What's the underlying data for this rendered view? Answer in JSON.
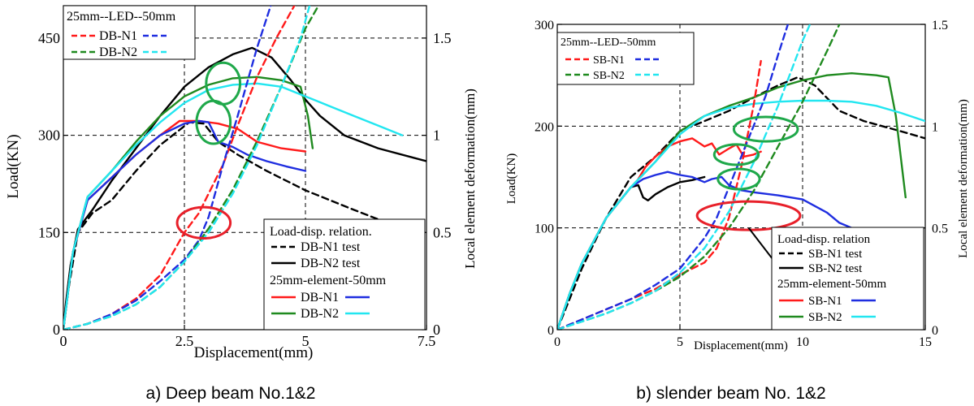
{
  "figure": {
    "panel_a_caption": "a) Deep beam No.1&2",
    "panel_b_caption": "b) slender beam No. 1&2"
  },
  "colors": {
    "red": "#ff1a1a",
    "blue": "#1f2ee0",
    "green": "#1f8a1f",
    "cyan": "#22e6f0",
    "black": "#000000",
    "circle_green": "#1fa84a",
    "circle_red": "#e8202a"
  },
  "chart_data": [
    {
      "type": "line",
      "panel": "a",
      "xlabel": "Displacement(mm)",
      "ylabel": "Load(KN)",
      "y2label": "Local element deformation(mm)",
      "xlim": [
        0,
        7.5
      ],
      "ylim": [
        0,
        500
      ],
      "y2lim": [
        0,
        1.6667
      ],
      "x_ticks": [
        "0",
        "2.5",
        "5",
        "7.5"
      ],
      "y_ticks": [
        "0",
        "150",
        "300",
        "450"
      ],
      "y2_ticks": [
        "0",
        "0.5",
        "1",
        "1.5"
      ],
      "grid": "dashed at x=2.5, x=5 and y=150, 300, 450",
      "legend_top": {
        "title": "25mm--LED--50mm",
        "entries": [
          "DB-N1",
          "DB-N2"
        ]
      },
      "legend_bottom": {
        "title1": "Load-disp. relation.",
        "test_entries": [
          "DB-N1 test",
          "DB-N2 test"
        ],
        "title2": "25mm-element-50mm",
        "fe_entries": [
          "DB-N1",
          "DB-N2"
        ]
      },
      "series": [
        {
          "name": "DB-N1 test",
          "axis": "left",
          "color": "black",
          "dash": true,
          "x": [
            0,
            0.1,
            0.3,
            0.6,
            1.0,
            1.5,
            2.0,
            2.6,
            2.9,
            3.2,
            3.6,
            4.2,
            5.0,
            6.0,
            7.2
          ],
          "y": [
            0,
            60,
            150,
            180,
            200,
            245,
            285,
            320,
            318,
            290,
            270,
            245,
            215,
            185,
            150
          ]
        },
        {
          "name": "DB-N2 test",
          "axis": "left",
          "color": "black",
          "dash": false,
          "x": [
            0,
            0.05,
            0.15,
            0.3,
            0.6,
            1.0,
            1.5,
            2.0,
            2.5,
            3.0,
            3.5,
            3.9,
            4.3,
            4.7,
            5.0,
            5.3,
            5.8,
            6.5,
            7.5
          ],
          "y": [
            0,
            40,
            100,
            155,
            185,
            230,
            280,
            330,
            375,
            405,
            425,
            435,
            420,
            385,
            355,
            330,
            300,
            280,
            260
          ]
        },
        {
          "name": "DB-N1",
          "axis": "left",
          "color": "red",
          "dash": false,
          "x": [
            0,
            0.2,
            0.5,
            1.0,
            1.5,
            2.0,
            2.4,
            2.8,
            3.2,
            3.6,
            4.0,
            4.5,
            5.0
          ],
          "y": [
            0,
            120,
            200,
            235,
            270,
            300,
            322,
            322,
            318,
            310,
            290,
            280,
            275
          ]
        },
        {
          "name": "DB-N1",
          "axis": "left",
          "color": "blue",
          "dash": false,
          "x": [
            0,
            0.2,
            0.5,
            1.0,
            1.5,
            2.0,
            2.5,
            2.8,
            3.0,
            3.2,
            3.5,
            3.8,
            4.2,
            4.6,
            5.0
          ],
          "y": [
            0,
            120,
            200,
            235,
            270,
            300,
            318,
            322,
            320,
            290,
            282,
            270,
            260,
            252,
            245
          ]
        },
        {
          "name": "DB-N2",
          "axis": "left",
          "color": "green",
          "dash": false,
          "x": [
            0,
            0.2,
            0.5,
            1.0,
            1.5,
            2.0,
            2.5,
            3.0,
            3.5,
            4.0,
            4.5,
            4.9,
            5.05,
            5.15
          ],
          "y": [
            0,
            120,
            205,
            245,
            290,
            330,
            360,
            378,
            388,
            390,
            385,
            375,
            330,
            280
          ]
        },
        {
          "name": "DB-N2",
          "axis": "left",
          "color": "cyan",
          "dash": false,
          "x": [
            0,
            0.2,
            0.5,
            1.0,
            1.5,
            2.0,
            2.5,
            3.0,
            3.5,
            4.0,
            4.5,
            5.0,
            5.5,
            6.0,
            6.5,
            7.0
          ],
          "y": [
            0,
            120,
            205,
            245,
            285,
            320,
            350,
            370,
            378,
            380,
            375,
            360,
            345,
            330,
            315,
            300
          ]
        },
        {
          "name": "DB-N1",
          "axis": "right",
          "color": "red",
          "dash": true,
          "x": [
            0,
            0.5,
            1.0,
            1.5,
            2.0,
            2.5,
            2.8,
            3.0,
            3.3,
            3.6,
            4.0,
            4.4,
            4.8
          ],
          "y": [
            0,
            0.03,
            0.08,
            0.16,
            0.28,
            0.5,
            0.6,
            0.7,
            0.85,
            1.05,
            1.3,
            1.5,
            1.68
          ]
        },
        {
          "name": "DB-N1",
          "axis": "right",
          "color": "blue",
          "dash": true,
          "x": [
            0,
            0.5,
            1.0,
            1.5,
            2.0,
            2.5,
            2.8,
            3.0,
            3.3,
            3.6,
            4.0,
            4.3
          ],
          "y": [
            0,
            0.03,
            0.08,
            0.15,
            0.25,
            0.36,
            0.46,
            0.58,
            0.85,
            1.1,
            1.45,
            1.68
          ]
        },
        {
          "name": "DB-N2",
          "axis": "right",
          "color": "green",
          "dash": true,
          "x": [
            0,
            0.5,
            1.0,
            1.5,
            2.0,
            2.5,
            3.0,
            3.5,
            4.0,
            4.5,
            5.0,
            5.3
          ],
          "y": [
            0,
            0.03,
            0.07,
            0.13,
            0.22,
            0.35,
            0.52,
            0.72,
            0.97,
            1.25,
            1.55,
            1.68
          ]
        },
        {
          "name": "DB-N2",
          "axis": "right",
          "color": "cyan",
          "dash": true,
          "x": [
            0,
            0.5,
            1.0,
            1.5,
            2.0,
            2.5,
            3.0,
            3.5,
            4.0,
            4.5,
            4.9,
            5.1
          ],
          "y": [
            0,
            0.03,
            0.07,
            0.13,
            0.22,
            0.35,
            0.5,
            0.7,
            0.95,
            1.25,
            1.5,
            1.68
          ]
        }
      ],
      "annotations": [
        {
          "shape": "ellipse",
          "color": "circle_green",
          "x": 3.3,
          "y": 380,
          "rx": 0.35,
          "ry": 32
        },
        {
          "shape": "ellipse",
          "color": "circle_green",
          "x": 3.1,
          "y": 320,
          "rx": 0.35,
          "ry": 33
        },
        {
          "shape": "ellipse",
          "color": "circle_red",
          "x": 2.9,
          "y": 165,
          "rx": 0.55,
          "ry": 24
        }
      ]
    },
    {
      "type": "line",
      "panel": "b",
      "xlabel": "Displacement(mm)",
      "ylabel": "Load(KN)",
      "y2label": "Local element deformation(mm)",
      "xlim": [
        0,
        15
      ],
      "ylim": [
        0,
        300
      ],
      "y2lim": [
        0,
        1.5
      ],
      "x_ticks": [
        "0",
        "5",
        "10",
        "15"
      ],
      "y_ticks": [
        "0",
        "100",
        "200",
        "300"
      ],
      "y2_ticks": [
        "0",
        "0.5",
        "1",
        "1.5"
      ],
      "grid": "dashed at x=5, x=10 and y=100, 200",
      "legend_top": {
        "title": "25mm--LED--50mm",
        "entries": [
          "SB-N1",
          "SB-N2"
        ]
      },
      "legend_bottom": {
        "title1": "Load-disp. relation",
        "test_entries": [
          "SB-N1 test",
          "SB-N2 test"
        ],
        "title2": "25mm-element-50mm",
        "fe_entries": [
          "SB-N1",
          "SB-N2"
        ]
      },
      "series": [
        {
          "name": "SB-N1 test",
          "axis": "left",
          "color": "black",
          "dash": true,
          "x": [
            0,
            0.5,
            1.0,
            2.0,
            3.0,
            4.0,
            5.0,
            6.0,
            7.0,
            8.0,
            9.0,
            9.8,
            10.5,
            11.5,
            12.5,
            14.0,
            15.0
          ],
          "y": [
            0,
            30,
            60,
            110,
            150,
            170,
            195,
            205,
            215,
            228,
            240,
            248,
            240,
            215,
            205,
            195,
            188
          ]
        },
        {
          "name": "SB-N2 test",
          "axis": "left",
          "color": "black",
          "dash": false,
          "x": [
            0,
            0.5,
            1.0,
            2.0,
            3.0,
            3.3,
            3.5,
            3.7,
            4.0,
            4.5,
            5.0,
            5.5,
            6.0
          ],
          "y": [
            0,
            35,
            65,
            110,
            140,
            142,
            130,
            127,
            133,
            140,
            145,
            147,
            150
          ]
        },
        {
          "name": "SB-N1",
          "axis": "left",
          "color": "red",
          "dash": false,
          "x": [
            3.3,
            3.6,
            4.0,
            4.5,
            5.0,
            5.5,
            6.0,
            6.3,
            6.6,
            7.0,
            7.3,
            7.6,
            8.0,
            8.3
          ],
          "y": [
            148,
            160,
            170,
            180,
            185,
            188,
            180,
            183,
            172,
            178,
            182,
            170,
            172,
            175
          ]
        },
        {
          "name": "SB-N1",
          "axis": "left",
          "color": "blue",
          "dash": false,
          "x": [
            0,
            0.5,
            1.0,
            2.0,
            3.0,
            3.5,
            4.0,
            4.5,
            5.0,
            5.5,
            6.0,
            6.3,
            6.7,
            7.0,
            7.5,
            8.0,
            9.0,
            10.0,
            11.0,
            11.5,
            12.0
          ],
          "y": [
            0,
            35,
            65,
            110,
            140,
            148,
            152,
            155,
            152,
            150,
            145,
            148,
            150,
            142,
            137,
            135,
            132,
            128,
            115,
            105,
            100
          ]
        },
        {
          "name": "SB-N2",
          "axis": "left",
          "color": "green",
          "dash": false,
          "x": [
            0,
            0.5,
            1.0,
            2.0,
            3.0,
            4.0,
            5.0,
            6.0,
            7.0,
            8.0,
            9.0,
            10.0,
            11.0,
            12.0,
            13.0,
            13.5,
            13.8,
            14.0,
            14.2
          ],
          "y": [
            0,
            35,
            65,
            110,
            140,
            165,
            195,
            210,
            220,
            228,
            238,
            245,
            250,
            252,
            250,
            248,
            210,
            170,
            130
          ]
        },
        {
          "name": "SB-N2",
          "axis": "left",
          "color": "cyan",
          "dash": false,
          "x": [
            0,
            0.5,
            1.0,
            2.0,
            3.0,
            4.0,
            5.0,
            6.0,
            7.0,
            8.0,
            9.0,
            10.0,
            11.0,
            12.0,
            13.0,
            14.0,
            15.0
          ],
          "y": [
            0,
            35,
            65,
            110,
            140,
            165,
            192,
            210,
            218,
            222,
            224,
            225,
            225,
            224,
            220,
            213,
            205
          ]
        },
        {
          "name": "SB-N1",
          "axis": "right",
          "color": "red",
          "dash": true,
          "x": [
            0,
            1.0,
            2.0,
            3.0,
            4.0,
            5.0,
            5.5,
            6.0,
            6.5,
            7.0,
            7.5,
            8.0,
            8.3
          ],
          "y": [
            0,
            0.05,
            0.1,
            0.15,
            0.2,
            0.27,
            0.3,
            0.33,
            0.4,
            0.55,
            0.8,
            1.1,
            1.32
          ]
        },
        {
          "name": "SB-N1",
          "axis": "right",
          "color": "blue",
          "dash": true,
          "x": [
            0,
            1.0,
            2.0,
            3.0,
            4.0,
            5.0,
            6.0,
            6.5,
            7.0,
            7.5,
            8.0,
            8.5,
            9.0,
            9.4
          ],
          "y": [
            0,
            0.05,
            0.1,
            0.15,
            0.22,
            0.3,
            0.45,
            0.55,
            0.7,
            0.85,
            1.0,
            1.15,
            1.35,
            1.5
          ]
        },
        {
          "name": "SB-N2",
          "axis": "right",
          "color": "green",
          "dash": true,
          "x": [
            0,
            1.0,
            2.0,
            3.0,
            4.0,
            5.0,
            6.0,
            7.0,
            8.0,
            9.0,
            10.0,
            11.0,
            11.5
          ],
          "y": [
            0,
            0.04,
            0.08,
            0.13,
            0.19,
            0.26,
            0.36,
            0.5,
            0.68,
            0.9,
            1.12,
            1.37,
            1.5
          ]
        },
        {
          "name": "SB-N2",
          "axis": "right",
          "color": "cyan",
          "dash": true,
          "x": [
            0,
            1.0,
            2.0,
            3.0,
            4.0,
            5.0,
            6.0,
            7.0,
            8.0,
            9.0,
            10.0,
            10.3
          ],
          "y": [
            0,
            0.04,
            0.08,
            0.13,
            0.19,
            0.28,
            0.4,
            0.58,
            0.82,
            1.1,
            1.42,
            1.5
          ]
        }
      ],
      "annotations": [
        {
          "shape": "ellipse",
          "color": "circle_green",
          "x": 8.5,
          "y": 197,
          "rx": 1.3,
          "ry": 12
        },
        {
          "shape": "ellipse",
          "color": "circle_green",
          "x": 7.3,
          "y": 172,
          "rx": 0.9,
          "ry": 10
        },
        {
          "shape": "ellipse",
          "color": "circle_green",
          "x": 7.4,
          "y": 148,
          "rx": 0.85,
          "ry": 10
        },
        {
          "shape": "ellipse",
          "color": "circle_red",
          "x": 7.8,
          "y": 112,
          "rx": 2.1,
          "ry": 14
        },
        {
          "shape": "line",
          "color": "black",
          "x1": 7.8,
          "y1": 100,
          "x2": 10.0,
          "y2": 31
        }
      ]
    }
  ]
}
